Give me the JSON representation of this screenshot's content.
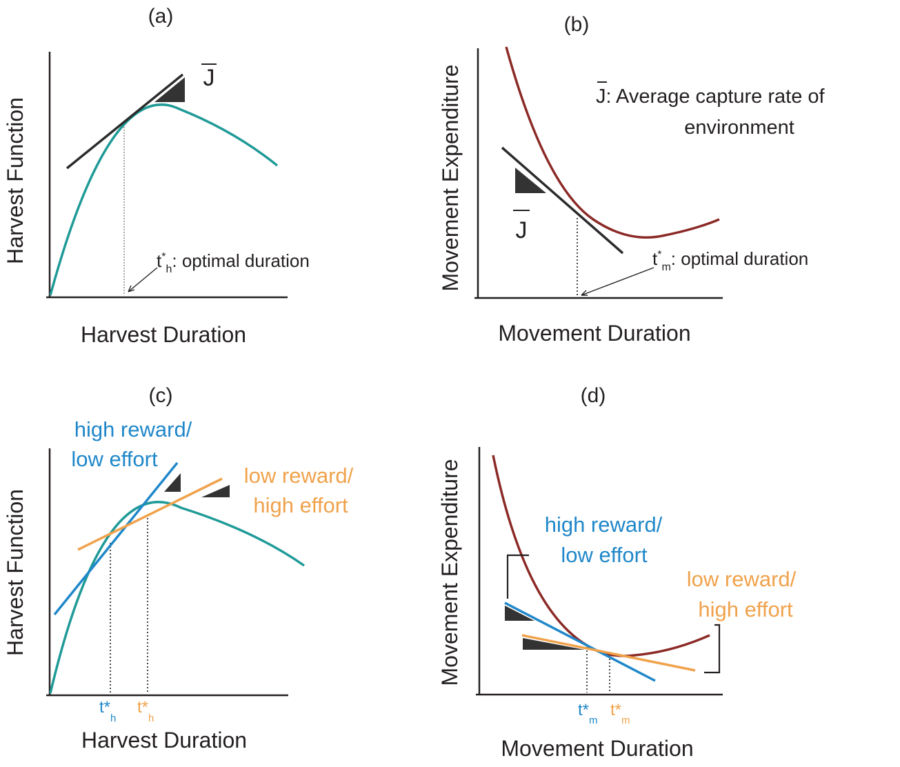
{
  "panels": {
    "a": {
      "label": "(a)",
      "xlabel": "Harvest Duration",
      "ylabel": "Harvest Function",
      "slope_label": "J",
      "annotation_t": "t",
      "annotation_star": "*",
      "annotation_sub": "h",
      "annotation_text": ": optimal duration"
    },
    "b": {
      "label": "(b)",
      "xlabel": "Movement Duration",
      "ylabel": "Movement Expenditure",
      "slope_label": "J",
      "legend_symbol": "J",
      "legend_line1": ": Average capture rate of",
      "legend_line2": "environment",
      "annotation_t": "t",
      "annotation_star": "*",
      "annotation_sub": "m",
      "annotation_text": ": optimal duration"
    },
    "c": {
      "label": "(c)",
      "xlabel": "Harvest Duration",
      "ylabel": "Harvest Function",
      "high_line1": "high reward/",
      "high_line2": "low effort",
      "low_line1": "low reward/",
      "low_line2": "high effort",
      "tick_blue_t": "t*",
      "tick_blue_sub": "h",
      "tick_orange_t": "t*",
      "tick_orange_sub": "h"
    },
    "d": {
      "label": "(d)",
      "xlabel": "Movement Duration",
      "ylabel": "Movement Expenditure",
      "high_line1": "high reward/",
      "high_line2": "low effort",
      "low_line1": "low reward/",
      "low_line2": "high effort",
      "tick_blue_t": "t*",
      "tick_blue_sub": "m",
      "tick_orange_t": "t*",
      "tick_orange_sub": "m"
    }
  },
  "colors": {
    "harvest_curve": "#1f9a97",
    "movement_curve": "#8b2a26",
    "average_line": "#2b2b2b",
    "high_reward": "#1f87c9",
    "low_reward": "#f0a24b"
  }
}
